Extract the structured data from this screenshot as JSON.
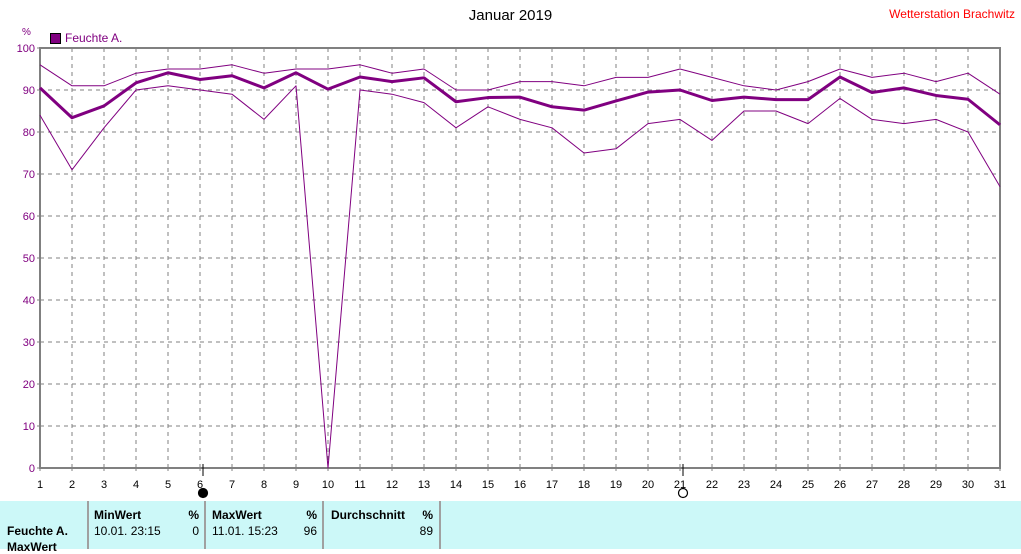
{
  "header": {
    "title": "Januar 2019",
    "station": "Wetterstation Brachwitz"
  },
  "legend": {
    "label": "Feuchte A.",
    "color": "#800080"
  },
  "chart_data": {
    "type": "line",
    "title": "Januar 2019",
    "ylabel": "%",
    "xlim": [
      1,
      31
    ],
    "ylim": [
      0,
      100
    ],
    "grid": true,
    "legend_position": "top-left",
    "x": [
      1,
      2,
      3,
      4,
      5,
      6,
      7,
      8,
      9,
      10,
      11,
      12,
      13,
      14,
      15,
      16,
      17,
      18,
      19,
      20,
      21,
      22,
      23,
      24,
      25,
      26,
      27,
      28,
      29,
      30,
      31
    ],
    "y_ticks": [
      0,
      10,
      20,
      30,
      40,
      50,
      60,
      70,
      80,
      90,
      100
    ],
    "series": [
      {
        "role": "max",
        "values": [
          96,
          91,
          91,
          94,
          95,
          95,
          96,
          94,
          95,
          95,
          96,
          94,
          95,
          90,
          90,
          92,
          92,
          91,
          93,
          93,
          95,
          93,
          91,
          90,
          92,
          95,
          93,
          94,
          92,
          94,
          89
        ]
      },
      {
        "role": "average",
        "values": [
          90.5,
          83.4,
          86.2,
          91.7,
          94.1,
          92.5,
          93.4,
          90.5,
          94.1,
          90.2,
          93.1,
          92.0,
          92.9,
          87.2,
          88.2,
          88.3,
          86.0,
          85.2,
          87.4,
          89.5,
          90.0,
          87.5,
          88.3,
          87.7,
          87.7,
          93.1,
          89.4,
          90.5,
          88.7,
          87.8,
          81.7
        ]
      },
      {
        "role": "min",
        "values": [
          84,
          71,
          81,
          90,
          91,
          90,
          89,
          83,
          91,
          0,
          90,
          89,
          87,
          81,
          86,
          83,
          81,
          75,
          76,
          82,
          83,
          78,
          85,
          85,
          82,
          88,
          83,
          82,
          83,
          80,
          67
        ]
      }
    ],
    "color": "#800080",
    "moon_phases": [
      {
        "day": 6,
        "phase": "full-moon"
      },
      {
        "day": 21,
        "phase": "new-moon"
      }
    ]
  },
  "footer": {
    "row_label": "Feuchte A.",
    "row_label2": "MaxWert",
    "min": {
      "header": "MinWert",
      "unit": "%",
      "date": "10.01.  23:15",
      "value": "0"
    },
    "max": {
      "header": "MaxWert",
      "unit": "%",
      "date": "11.01.  15:23",
      "value": "96"
    },
    "avg": {
      "header": "Durchschnitt",
      "unit": "%",
      "value": "89"
    }
  }
}
